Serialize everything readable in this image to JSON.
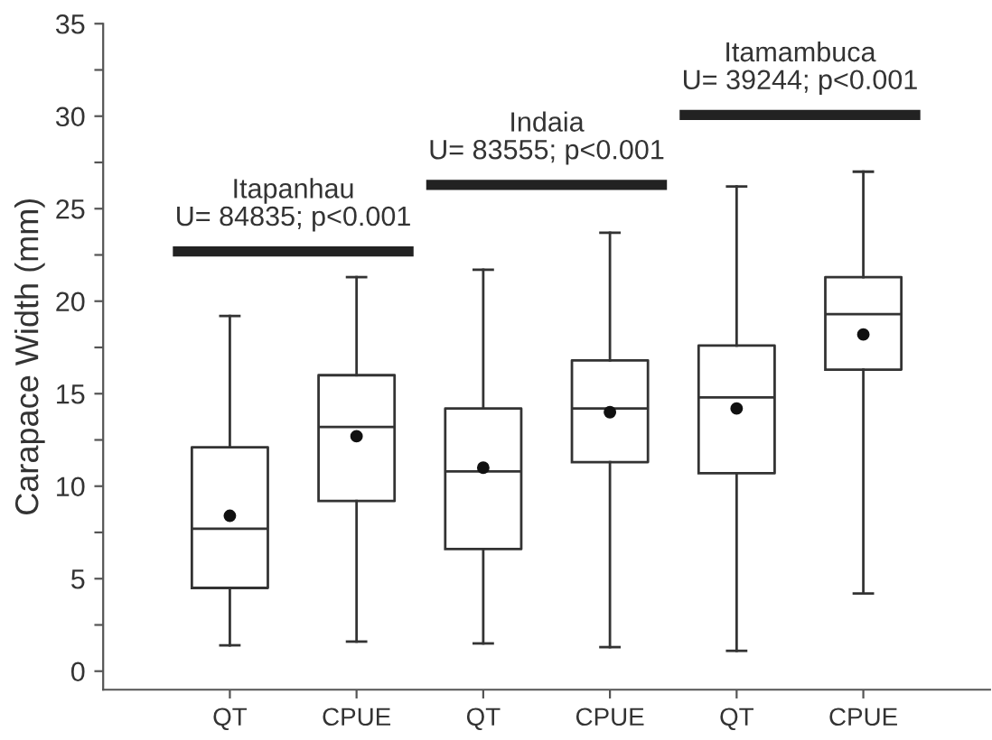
{
  "chart_data": {
    "type": "box",
    "ylabel": "Carapace Width (mm)",
    "categories": [
      "QT",
      "CPUE",
      "QT",
      "CPUE",
      "QT",
      "CPUE"
    ],
    "boxes": [
      {
        "low": 1.4,
        "q1": 4.5,
        "median": 7.7,
        "q3": 12.1,
        "high": 19.2,
        "mean": 8.4
      },
      {
        "low": 1.6,
        "q1": 9.2,
        "median": 13.2,
        "q3": 16.0,
        "high": 21.3,
        "mean": 12.7
      },
      {
        "low": 1.5,
        "q1": 6.6,
        "median": 10.8,
        "q3": 14.2,
        "high": 21.7,
        "mean": 11.0
      },
      {
        "low": 1.3,
        "q1": 11.3,
        "median": 14.2,
        "q3": 16.8,
        "high": 23.7,
        "mean": 14.0
      },
      {
        "low": 1.1,
        "q1": 10.7,
        "median": 14.8,
        "q3": 17.6,
        "high": 26.2,
        "mean": 14.2
      },
      {
        "low": 4.2,
        "q1": 16.3,
        "median": 19.3,
        "q3": 21.3,
        "high": 27.0,
        "mean": 18.2
      }
    ],
    "ylim": [
      -1,
      35
    ],
    "yticks": [
      0,
      {
        "value": 2.5,
        "label": null
      },
      5,
      {
        "value": 7.5,
        "label": null
      },
      10,
      {
        "value": 12.5,
        "label": null
      },
      15,
      {
        "value": 17.5,
        "label": null
      },
      20,
      {
        "value": 22.5,
        "label": null
      },
      25,
      {
        "value": 27.5,
        "label": null
      },
      30,
      {
        "value": 32.5,
        "label": null
      },
      35
    ],
    "annotations": [
      "Itapanhau\nU= 84835; p<0.001",
      "Indaia\nU= 83555; p<0.001",
      "Itamambuca\nU= 39244; p<0.001"
    ],
    "color": "#333333",
    "grid": false,
    "legend": false
  }
}
